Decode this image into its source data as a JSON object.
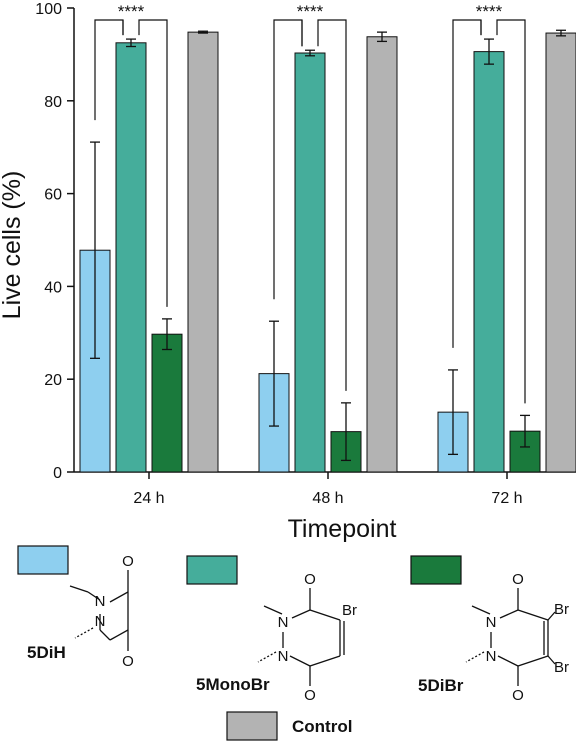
{
  "chart_data": {
    "type": "bar",
    "categories": [
      "24 h",
      "48 h",
      "72 h"
    ],
    "series": [
      {
        "name": "5DiH",
        "color": "#8ecfef",
        "values": [
          47.8,
          21.2,
          12.9
        ],
        "errors": [
          23.3,
          11.3,
          9.1
        ]
      },
      {
        "name": "5MonoBr",
        "color": "#45ad9b",
        "values": [
          92.5,
          90.3,
          90.6
        ],
        "errors": [
          0.8,
          0.6,
          2.7
        ]
      },
      {
        "name": "5DiBr",
        "color": "#1a7a3c",
        "values": [
          29.7,
          8.7,
          8.8
        ],
        "errors": [
          3.3,
          6.2,
          3.4
        ]
      },
      {
        "name": "Control",
        "color": "#b3b3b3",
        "values": [
          94.8,
          93.8,
          94.6
        ],
        "errors": [
          0.2,
          1.0,
          0.6
        ]
      }
    ],
    "xlabel": "Timepoint",
    "ylabel": "Live cells (%)",
    "ylim": [
      0,
      100
    ],
    "yticks": [
      "0",
      "20",
      "40",
      "60",
      "80",
      "100"
    ],
    "significance": [
      "****",
      "****",
      "****"
    ],
    "grid": false,
    "legend_position": "bottom"
  },
  "structures": {
    "5DiH": {
      "atoms": [
        "N",
        "N",
        "O",
        "O"
      ]
    },
    "5MonoBr": {
      "atoms": [
        "N",
        "N",
        "O",
        "O",
        "Br"
      ]
    },
    "5DiBr": {
      "atoms": [
        "N",
        "N",
        "O",
        "O",
        "Br",
        "Br"
      ]
    }
  }
}
